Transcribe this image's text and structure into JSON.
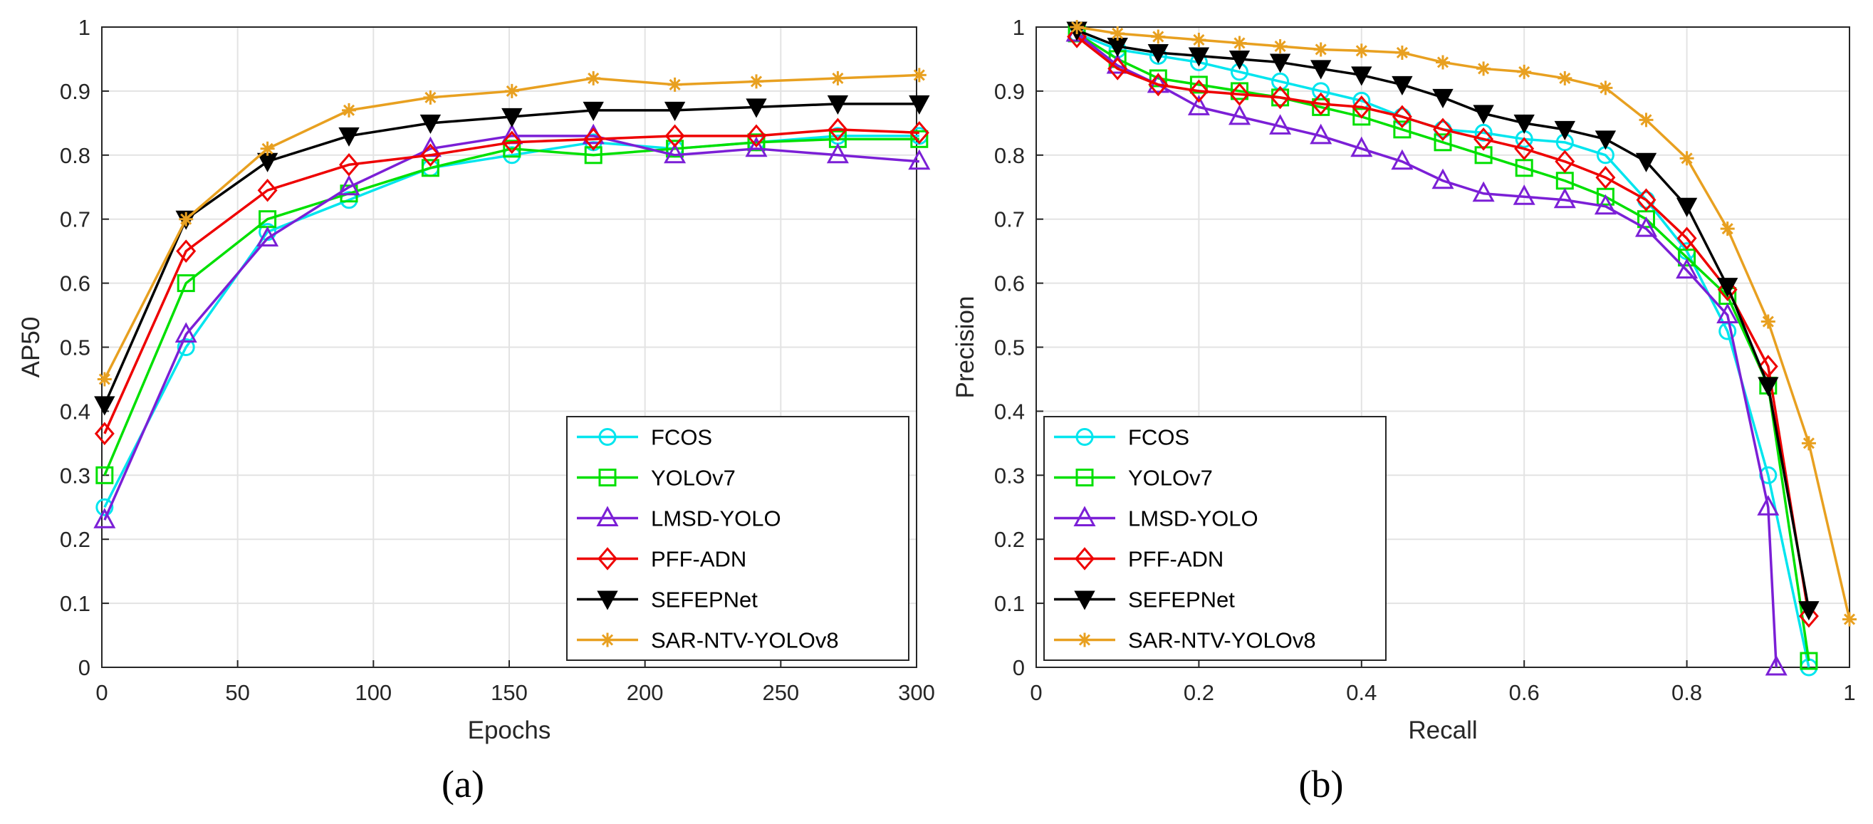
{
  "chart_data": [
    {
      "type": "line",
      "panel_label": "(a)",
      "xlabel": "Epochs",
      "ylabel": "AP50",
      "xlim": [
        0,
        300
      ],
      "ylim": [
        0,
        1
      ],
      "xticks": [
        0,
        50,
        100,
        150,
        200,
        250,
        300
      ],
      "yticks": [
        0,
        0.1,
        0.2,
        0.3,
        0.4,
        0.5,
        0.6,
        0.7,
        0.8,
        0.9,
        1
      ],
      "grid": true,
      "legend_position": "bottom-right",
      "x": [
        1,
        31,
        61,
        91,
        121,
        151,
        181,
        211,
        241,
        271,
        301
      ],
      "series": [
        {
          "name": "FCOS",
          "color": "#00e5ee",
          "marker": "circle",
          "values": [
            0.25,
            0.5,
            0.68,
            0.73,
            0.78,
            0.8,
            0.82,
            0.81,
            0.82,
            0.83,
            0.83
          ]
        },
        {
          "name": "YOLOv7",
          "color": "#00e000",
          "marker": "square",
          "values": [
            0.3,
            0.6,
            0.7,
            0.74,
            0.78,
            0.81,
            0.8,
            0.81,
            0.82,
            0.825,
            0.825
          ]
        },
        {
          "name": "LMSD-YOLO",
          "color": "#7b1fd6",
          "marker": "triangle-up",
          "values": [
            0.23,
            0.52,
            0.67,
            0.75,
            0.81,
            0.83,
            0.83,
            0.8,
            0.81,
            0.8,
            0.79
          ]
        },
        {
          "name": "PFF-ADN",
          "color": "#ee0000",
          "marker": "diamond",
          "values": [
            0.365,
            0.65,
            0.745,
            0.785,
            0.8,
            0.82,
            0.825,
            0.83,
            0.83,
            0.84,
            0.835
          ]
        },
        {
          "name": "SEFEPNet",
          "color": "#000000",
          "marker": "triangle-down",
          "values": [
            0.41,
            0.7,
            0.79,
            0.83,
            0.85,
            0.86,
            0.87,
            0.87,
            0.875,
            0.88,
            0.88
          ]
        },
        {
          "name": "SAR-NTV-YOLOv8",
          "color": "#e8a020",
          "marker": "asterisk",
          "values": [
            0.45,
            0.7,
            0.81,
            0.87,
            0.89,
            0.9,
            0.92,
            0.91,
            0.915,
            0.92,
            0.925
          ]
        }
      ]
    },
    {
      "type": "line",
      "panel_label": "(b)",
      "xlabel": "Recall",
      "ylabel": "Precision",
      "xlim": [
        0,
        1
      ],
      "ylim": [
        0,
        1
      ],
      "xticks": [
        0,
        0.2,
        0.4,
        0.6,
        0.8,
        1
      ],
      "yticks": [
        0,
        0.1,
        0.2,
        0.3,
        0.4,
        0.5,
        0.6,
        0.7,
        0.8,
        0.9,
        1
      ],
      "grid": true,
      "legend_position": "bottom-left",
      "series": [
        {
          "name": "FCOS",
          "color": "#00e5ee",
          "marker": "circle",
          "x": [
            0.05,
            0.1,
            0.15,
            0.2,
            0.25,
            0.3,
            0.35,
            0.4,
            0.45,
            0.5,
            0.55,
            0.6,
            0.65,
            0.7,
            0.75,
            0.8,
            0.85,
            0.9,
            0.95
          ],
          "y": [
            0.99,
            0.965,
            0.955,
            0.945,
            0.93,
            0.915,
            0.9,
            0.885,
            0.86,
            0.84,
            0.835,
            0.825,
            0.82,
            0.8,
            0.73,
            0.65,
            0.525,
            0.3,
            0.0
          ]
        },
        {
          "name": "YOLOv7",
          "color": "#00e000",
          "marker": "square",
          "x": [
            0.05,
            0.1,
            0.15,
            0.2,
            0.25,
            0.3,
            0.35,
            0.4,
            0.45,
            0.5,
            0.55,
            0.6,
            0.65,
            0.7,
            0.75,
            0.8,
            0.85,
            0.9,
            0.95
          ],
          "y": [
            0.99,
            0.95,
            0.92,
            0.91,
            0.9,
            0.89,
            0.875,
            0.86,
            0.84,
            0.82,
            0.8,
            0.78,
            0.76,
            0.735,
            0.7,
            0.64,
            0.58,
            0.44,
            0.01
          ]
        },
        {
          "name": "LMSD-YOLO",
          "color": "#7b1fd6",
          "marker": "triangle-up",
          "x": [
            0.05,
            0.1,
            0.15,
            0.2,
            0.25,
            0.3,
            0.35,
            0.4,
            0.45,
            0.5,
            0.55,
            0.6,
            0.65,
            0.7,
            0.75,
            0.8,
            0.85,
            0.9,
            0.91
          ],
          "y": [
            0.99,
            0.94,
            0.91,
            0.875,
            0.86,
            0.845,
            0.83,
            0.81,
            0.79,
            0.76,
            0.74,
            0.735,
            0.73,
            0.72,
            0.685,
            0.62,
            0.55,
            0.25,
            0.0
          ]
        },
        {
          "name": "PFF-ADN",
          "color": "#ee0000",
          "marker": "diamond",
          "x": [
            0.05,
            0.1,
            0.15,
            0.2,
            0.25,
            0.3,
            0.35,
            0.4,
            0.45,
            0.5,
            0.55,
            0.6,
            0.65,
            0.7,
            0.75,
            0.8,
            0.85,
            0.9,
            0.95
          ],
          "y": [
            0.985,
            0.935,
            0.91,
            0.9,
            0.895,
            0.89,
            0.88,
            0.875,
            0.86,
            0.84,
            0.825,
            0.81,
            0.79,
            0.765,
            0.73,
            0.67,
            0.59,
            0.47,
            0.08
          ]
        },
        {
          "name": "SEFEPNet",
          "color": "#000000",
          "marker": "triangle-down",
          "x": [
            0.05,
            0.1,
            0.15,
            0.2,
            0.25,
            0.3,
            0.35,
            0.4,
            0.45,
            0.5,
            0.55,
            0.6,
            0.65,
            0.7,
            0.75,
            0.8,
            0.85,
            0.9,
            0.95
          ],
          "y": [
            0.995,
            0.97,
            0.96,
            0.955,
            0.95,
            0.945,
            0.935,
            0.925,
            0.91,
            0.89,
            0.865,
            0.85,
            0.84,
            0.825,
            0.79,
            0.72,
            0.595,
            0.44,
            0.09
          ]
        },
        {
          "name": "SAR-NTV-YOLOv8",
          "color": "#e8a020",
          "marker": "asterisk",
          "x": [
            0.05,
            0.1,
            0.15,
            0.2,
            0.25,
            0.3,
            0.35,
            0.4,
            0.45,
            0.5,
            0.55,
            0.6,
            0.65,
            0.7,
            0.75,
            0.8,
            0.85,
            0.9,
            0.95,
            1.0
          ],
          "y": [
            1.0,
            0.99,
            0.985,
            0.98,
            0.975,
            0.97,
            0.965,
            0.963,
            0.96,
            0.945,
            0.935,
            0.93,
            0.92,
            0.905,
            0.855,
            0.795,
            0.685,
            0.54,
            0.35,
            0.075
          ]
        }
      ]
    }
  ],
  "captions": [
    "(a)",
    "(b)"
  ]
}
